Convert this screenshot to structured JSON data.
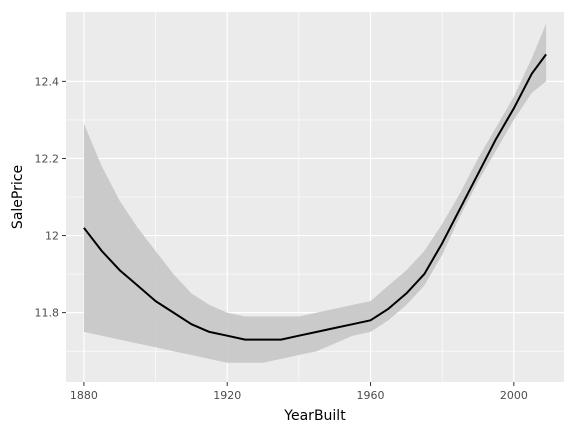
{
  "chart_data": {
    "type": "line",
    "title": "",
    "xlabel": "YearBuilt",
    "ylabel": "SalePrice",
    "xlim": [
      1875,
      2014
    ],
    "ylim": [
      11.62,
      12.58
    ],
    "grid": true,
    "legend": "none",
    "x_ticks": [
      1880,
      1920,
      1960,
      2000
    ],
    "x_tick_labels": [
      "1880",
      "1920",
      "1960",
      "2000"
    ],
    "y_ticks": [
      11.8,
      12.0,
      12.2,
      12.4
    ],
    "y_tick_labels": [
      "11.8",
      "12",
      "12.2",
      "12.4"
    ],
    "colors": {
      "panel": "#ebebeb",
      "grid": "#ffffff",
      "band": "#c6c6c6",
      "line": "#000000"
    },
    "series": [
      {
        "x": [
          1880,
          1885,
          1890,
          1895,
          1900,
          1905,
          1910,
          1915,
          1920,
          1925,
          1930,
          1935,
          1940,
          1945,
          1950,
          1955,
          1960,
          1965,
          1970,
          1975,
          1980,
          1985,
          1990,
          1995,
          2000,
          2005,
          2009
        ],
        "y": [
          12.02,
          11.96,
          11.91,
          11.87,
          11.83,
          11.8,
          11.77,
          11.75,
          11.74,
          11.73,
          11.73,
          11.73,
          11.74,
          11.75,
          11.76,
          11.77,
          11.78,
          11.81,
          11.85,
          11.9,
          11.98,
          12.07,
          12.16,
          12.25,
          12.33,
          12.42,
          12.47
        ],
        "ymin": [
          11.75,
          11.74,
          11.73,
          11.72,
          11.71,
          11.7,
          11.69,
          11.68,
          11.67,
          11.67,
          11.67,
          11.68,
          11.69,
          11.7,
          11.72,
          11.74,
          11.75,
          11.78,
          11.82,
          11.87,
          11.95,
          12.05,
          12.14,
          12.22,
          12.3,
          12.37,
          12.4
        ],
        "ymax": [
          12.29,
          12.18,
          12.09,
          12.02,
          11.96,
          11.9,
          11.85,
          11.82,
          11.8,
          11.79,
          11.79,
          11.79,
          11.79,
          11.8,
          11.81,
          11.82,
          11.83,
          11.87,
          11.91,
          11.96,
          12.03,
          12.11,
          12.2,
          12.28,
          12.36,
          12.46,
          12.55
        ]
      }
    ]
  }
}
